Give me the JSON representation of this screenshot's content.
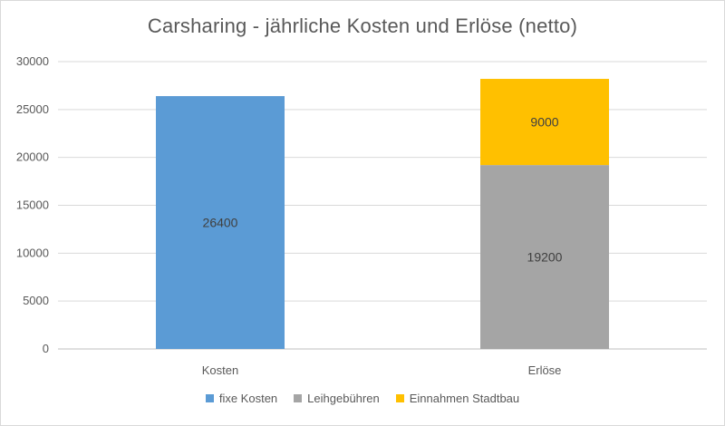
{
  "chart_data": {
    "type": "bar",
    "stacked": true,
    "title": "Carsharing - jährliche Kosten und Erlöse (netto)",
    "categories": [
      "Kosten",
      "Erlöse"
    ],
    "series": [
      {
        "name": "fixe Kosten",
        "color": "#5b9bd5",
        "values": [
          26400,
          0
        ]
      },
      {
        "name": "Leihgebühren",
        "color": "#a5a5a5",
        "values": [
          0,
          19200
        ]
      },
      {
        "name": "Einnahmen Stadtbau",
        "color": "#ffc000",
        "values": [
          0,
          9000
        ]
      }
    ],
    "ylim": [
      0,
      30000
    ],
    "yticks": [
      0,
      5000,
      10000,
      15000,
      20000,
      25000,
      30000
    ],
    "grid": true,
    "legend": "bottom",
    "data_labels": true
  }
}
